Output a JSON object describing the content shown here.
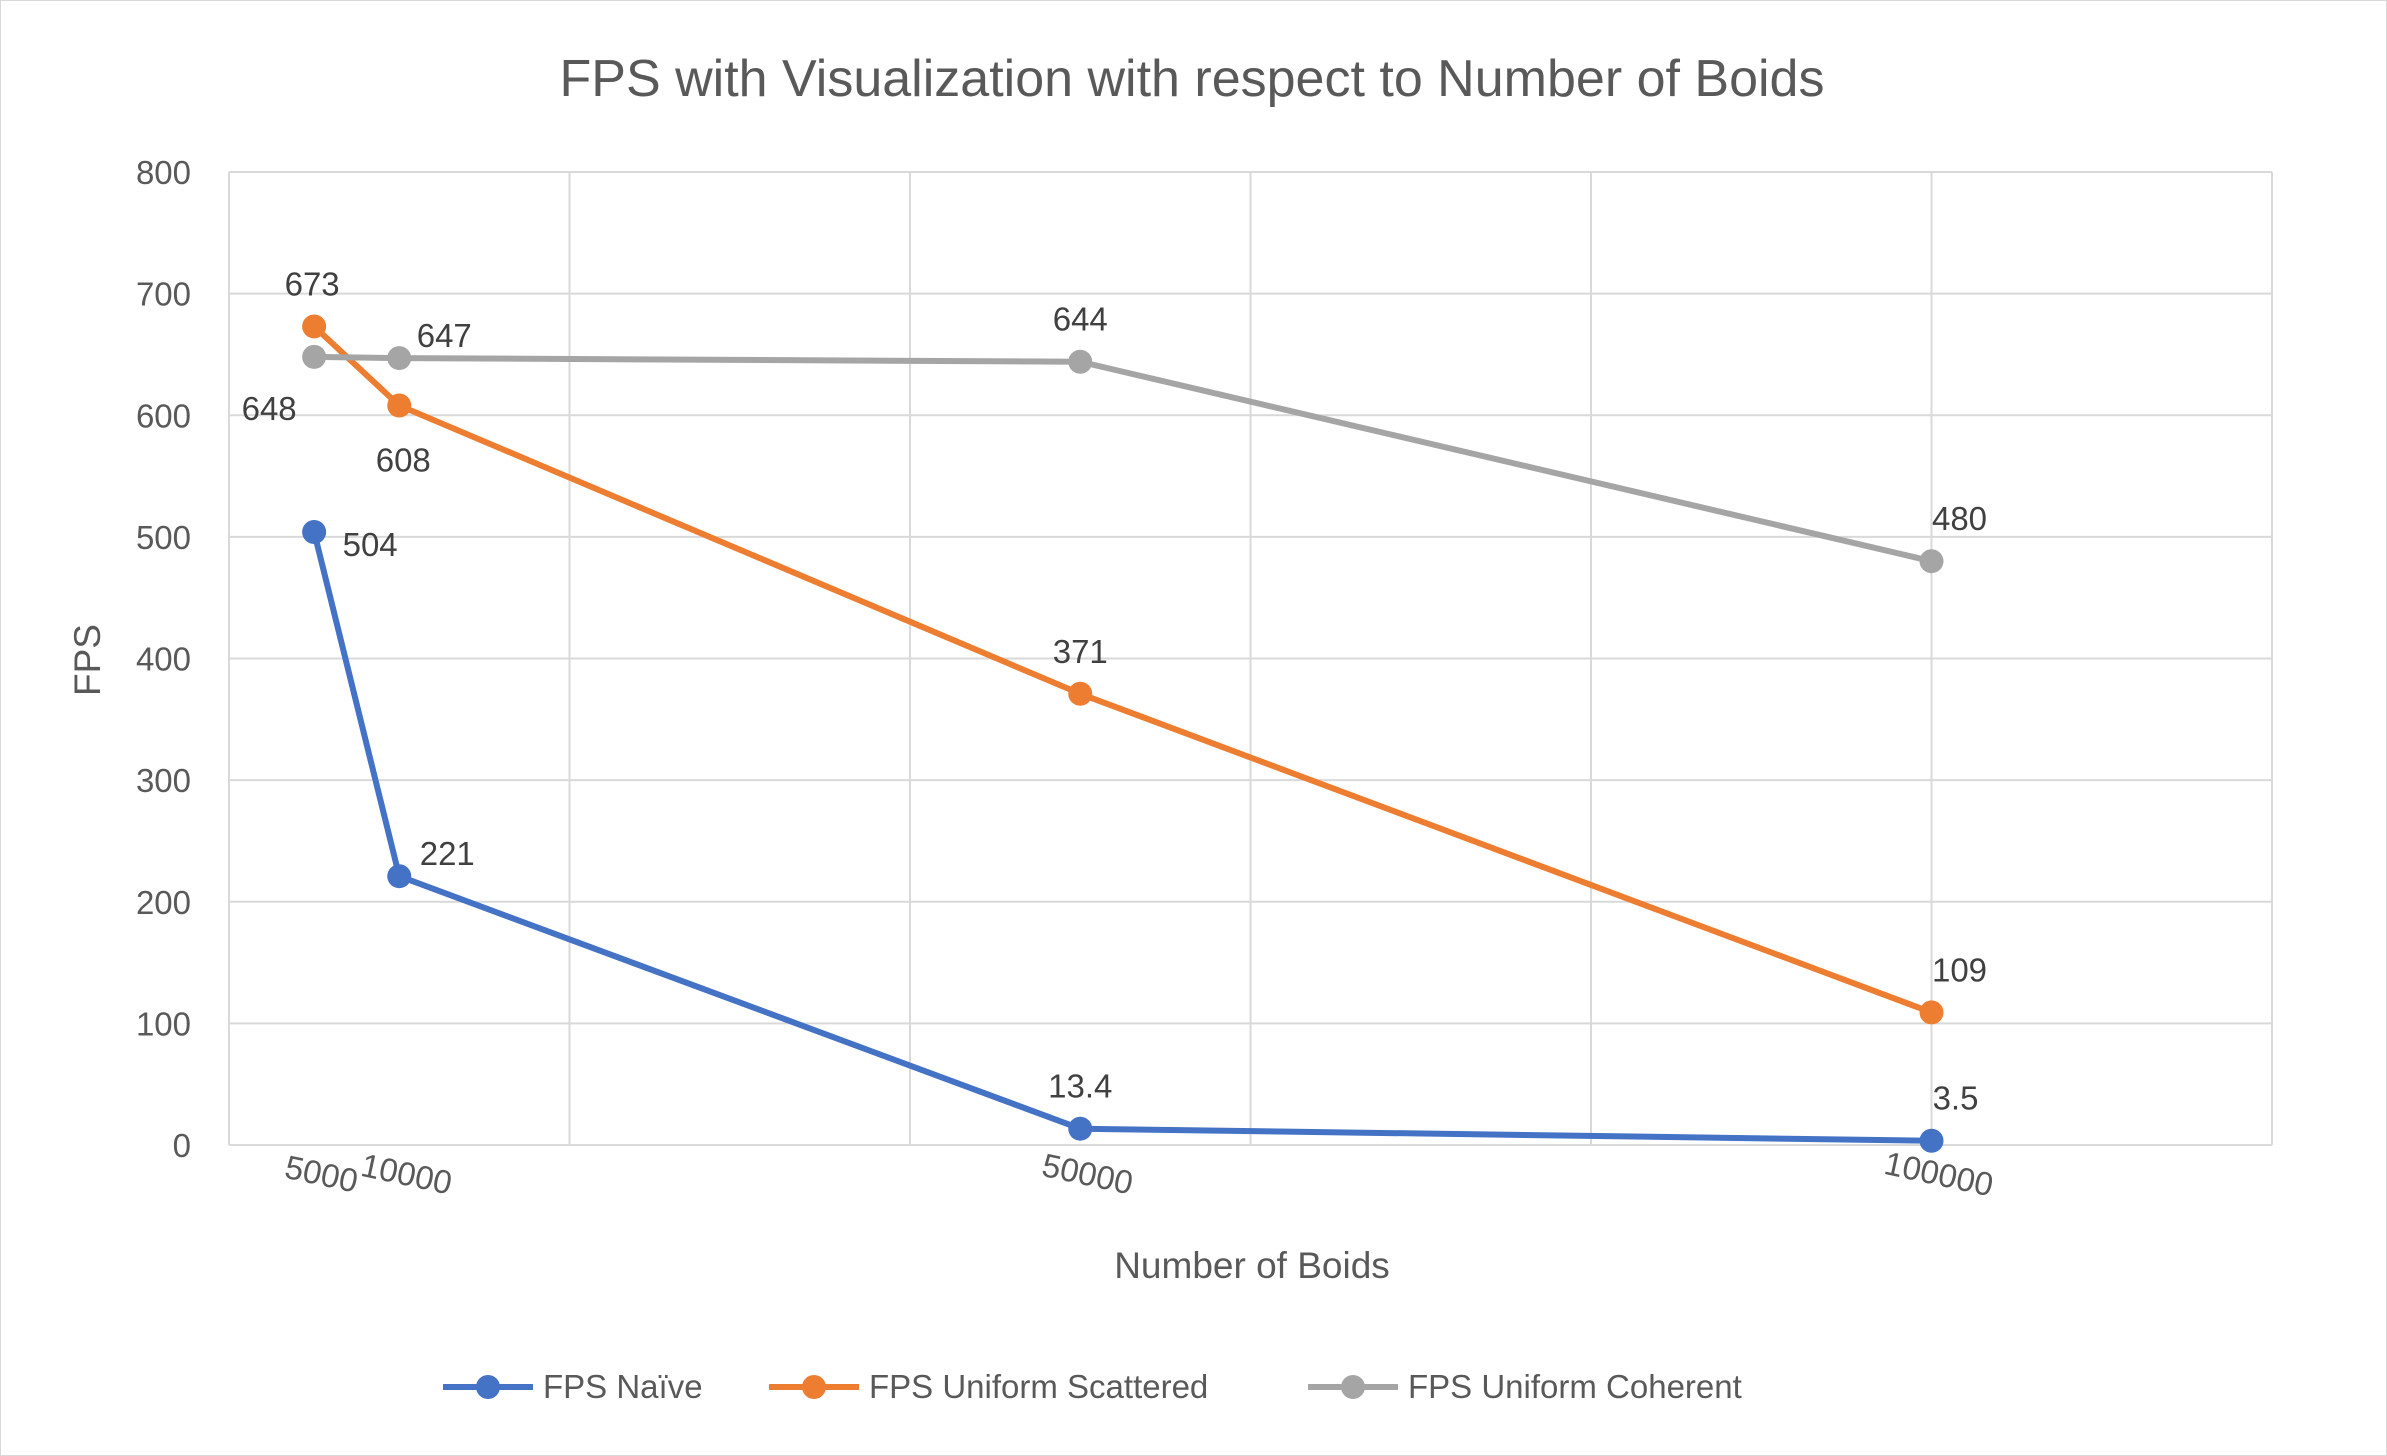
{
  "chart_data": {
    "type": "line",
    "title": "FPS with Visualization with respect to Number of Boids",
    "xlabel": "Number of Boids",
    "ylabel": "FPS",
    "x": [
      5000,
      10000,
      50000,
      100000
    ],
    "x_tick_labels": [
      "5000",
      "10000",
      "50000",
      "100000"
    ],
    "xlim": [
      0,
      120000
    ],
    "ylim": [
      0,
      800
    ],
    "y_ticks": [
      0,
      100,
      200,
      300,
      400,
      500,
      600,
      700,
      800
    ],
    "grid": true,
    "legend_position": "bottom",
    "series": [
      {
        "name": "FPS Naïve",
        "color": "#4472C4",
        "values": [
          504,
          221,
          13.4,
          3.5
        ],
        "labels": [
          "504",
          "221",
          "13.4",
          "3.5"
        ]
      },
      {
        "name": "FPS Uniform Scattered",
        "color": "#ED7D31",
        "values": [
          673,
          608,
          371,
          109
        ],
        "labels": [
          "673",
          "608",
          "371",
          "109"
        ]
      },
      {
        "name": "FPS Uniform Coherent",
        "color": "#A5A5A5",
        "values": [
          648,
          647,
          644,
          480
        ],
        "labels": [
          "648",
          "647",
          "644",
          "480"
        ]
      }
    ]
  }
}
